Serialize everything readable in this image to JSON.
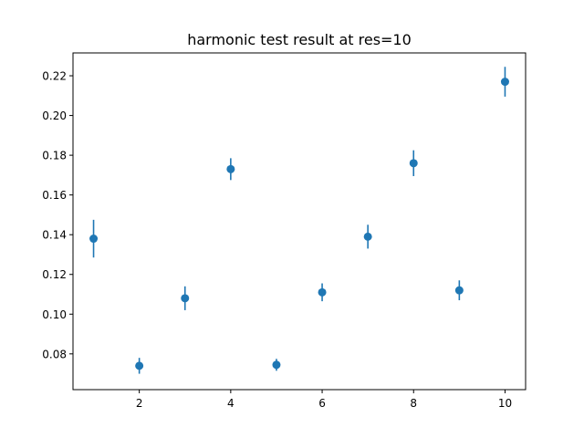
{
  "chart_data": {
    "type": "scatter",
    "title": "harmonic test result at res=10",
    "xlabel": "",
    "ylabel": "",
    "xlim": [
      0.55,
      10.45
    ],
    "ylim": [
      0.062,
      0.2315
    ],
    "xticks": [
      2,
      4,
      6,
      8,
      10
    ],
    "xtick_labels": [
      "2",
      "4",
      "6",
      "8",
      "10"
    ],
    "yticks": [
      0.08,
      0.1,
      0.12,
      0.14,
      0.16,
      0.18,
      0.2,
      0.22
    ],
    "ytick_labels": [
      "0.08",
      "0.10",
      "0.12",
      "0.14",
      "0.16",
      "0.18",
      "0.20",
      "0.22"
    ],
    "grid": false,
    "color": "#1f77b4",
    "series": [
      {
        "x": [
          1,
          2,
          3,
          4,
          5,
          6,
          7,
          8,
          9,
          10
        ],
        "y": [
          0.138,
          0.074,
          0.108,
          0.173,
          0.0745,
          0.111,
          0.139,
          0.176,
          0.112,
          0.217
        ],
        "yerr": [
          0.0095,
          0.004,
          0.006,
          0.0055,
          0.003,
          0.0045,
          0.006,
          0.0065,
          0.005,
          0.0075
        ]
      }
    ]
  }
}
